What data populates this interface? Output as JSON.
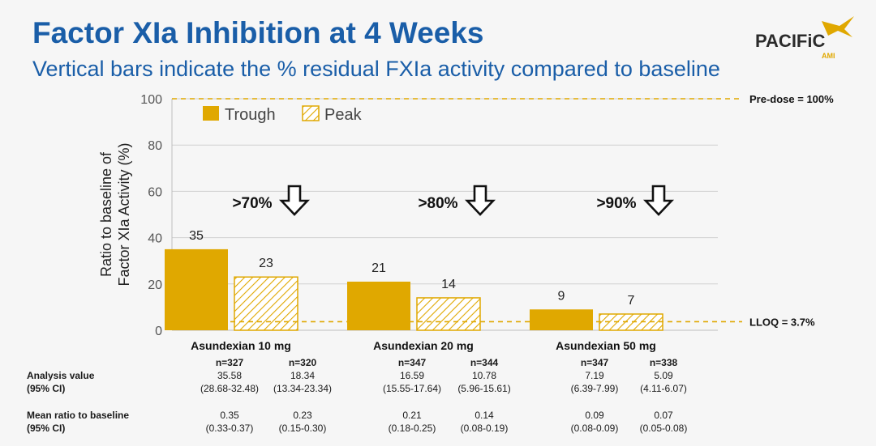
{
  "header": {
    "title": "Factor XIa Inhibition at 4 Weeks",
    "subtitle": "Vertical bars indicate the % residual FXIa activity compared to baseline"
  },
  "logo": {
    "text": "PACIFiC",
    "subtext": "AMI",
    "color": "#2b2b2b",
    "accent": "#e0a800"
  },
  "chart_data": {
    "type": "bar",
    "ylabel": "Ratio to baseline of Factor XIa Activity (%)",
    "ylim": [
      0,
      100
    ],
    "yticks": [
      0,
      20,
      40,
      60,
      80,
      100
    ],
    "grid": true,
    "legend": {
      "position": "top-left",
      "entries": [
        "Trough",
        "Peak"
      ]
    },
    "categories": [
      "Asundexian 10 mg",
      "Asundexian 20 mg",
      "Asundexian 50 mg"
    ],
    "series": [
      {
        "name": "Trough",
        "values": [
          35,
          21,
          9
        ],
        "labels": [
          "35",
          "21",
          "9"
        ],
        "style": "solid",
        "color": "#e0a800"
      },
      {
        "name": "Peak",
        "values": [
          23,
          14,
          7
        ],
        "labels": [
          "23",
          "14",
          "7"
        ],
        "style": "hatched",
        "color": "#e0a800"
      }
    ],
    "reference_lines": [
      {
        "value": 100,
        "label": "Pre-dose = 100%"
      },
      {
        "value": 3.7,
        "label": "LLOQ = 3.7%"
      }
    ],
    "annotations": [
      ">70%",
      ">80%",
      ">90%"
    ]
  },
  "table": {
    "n_values": [
      [
        "n=327",
        "n=320"
      ],
      [
        "n=347",
        "n=344"
      ],
      [
        "n=347",
        "n=338"
      ]
    ],
    "rows": [
      {
        "label": [
          "Analysis value",
          "(95% CI)"
        ],
        "values": [
          [
            [
              "35.58",
              "(28.68-32.48)"
            ],
            [
              "18.34",
              "(13.34-23.34)"
            ]
          ],
          [
            [
              "16.59",
              "(15.55-17.64)"
            ],
            [
              "10.78",
              "(5.96-15.61)"
            ]
          ],
          [
            [
              "7.19",
              "(6.39-7.99)"
            ],
            [
              "5.09",
              "(4.11-6.07)"
            ]
          ]
        ]
      },
      {
        "label": [
          "Mean ratio to baseline",
          "(95% CI)"
        ],
        "values": [
          [
            [
              "0.35",
              "(0.33-0.37)"
            ],
            [
              "0.23",
              "(0.15-0.30)"
            ]
          ],
          [
            [
              "0.21",
              "(0.18-0.25)"
            ],
            [
              "0.14",
              "(0.08-0.19)"
            ]
          ],
          [
            [
              "0.09",
              "(0.08-0.09)"
            ],
            [
              "0.07",
              "(0.05-0.08)"
            ]
          ]
        ]
      }
    ]
  }
}
